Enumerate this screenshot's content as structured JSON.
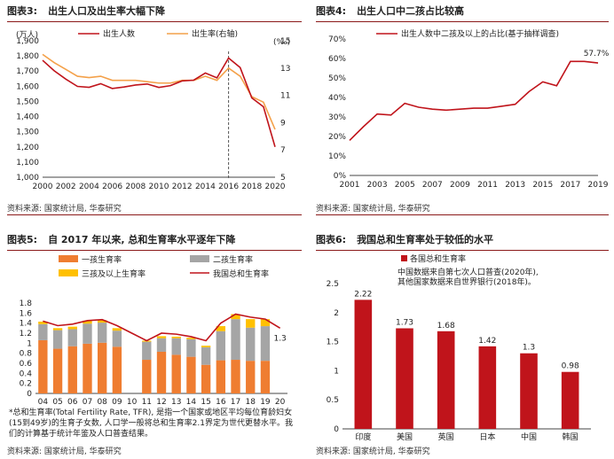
{
  "panels": {
    "p3": {
      "label": "图表3:",
      "title": "出生人口及出生率大幅下降",
      "source": "资料来源: 国家统计局, 华泰研究"
    },
    "p4": {
      "label": "图表4:",
      "title": "出生人口中二孩占比较高",
      "source": "资料来源: 国家统计局, 华泰研究"
    },
    "p5": {
      "label": "图表5:",
      "title": "自 2017 年以来, 总和生育率水平逐年下降",
      "source": "资料来源: 国家统计局, 华泰研究",
      "note": "*总和生育率(Total Fertility Rate, TFR), 是指一个国家或地区平均每位育龄妇女(15到49岁)的生育子女数, 人口学一般将总和生育率2.1界定为世代更替水平。我们的计算基于统计年鉴及人口普查结果。"
    },
    "p6": {
      "label": "图表6:",
      "title": "我国总和生育率处于较低的水平",
      "source": "资料来源: 国家统计局, 华泰研究"
    }
  },
  "colors": {
    "accent": "#c0141b",
    "orange": "#f4a14a",
    "bar_orange": "#ef7d31",
    "gray": "#a5a5a5",
    "yellow": "#ffc000",
    "line_red": "#c0141b"
  },
  "chart_data": [
    {
      "type": "line",
      "unit_left": "(万人)",
      "unit_right": "(‰)",
      "x": [
        2000,
        2001,
        2002,
        2003,
        2004,
        2005,
        2006,
        2007,
        2008,
        2009,
        2010,
        2011,
        2012,
        2013,
        2014,
        2015,
        2016,
        2017,
        2018,
        2019,
        2020
      ],
      "xticks": [
        "2000",
        "2002",
        "2004",
        "2006",
        "2008",
        "2010",
        "2012",
        "2014",
        "2016",
        "2018",
        "2020"
      ],
      "ylim": [
        1000,
        1900
      ],
      "yticks": [
        "1,000",
        "1,100",
        "1,200",
        "1,300",
        "1,400",
        "1,500",
        "1,600",
        "1,700",
        "1,800",
        "1,900"
      ],
      "y2lim": [
        5,
        15
      ],
      "y2ticks": [
        "5",
        "7",
        "9",
        "11",
        "13",
        "15"
      ],
      "series": [
        {
          "name": "出生人数",
          "axis": "left",
          "values": [
            1771,
            1702,
            1647,
            1599,
            1593,
            1617,
            1585,
            1595,
            1608,
            1615,
            1592,
            1604,
            1635,
            1640,
            1687,
            1655,
            1786,
            1723,
            1523,
            1465,
            1200
          ]
        },
        {
          "name": "出生率(右轴)",
          "axis": "right",
          "values": [
            14.0,
            13.4,
            12.9,
            12.4,
            12.3,
            12.4,
            12.1,
            12.1,
            12.1,
            12.0,
            11.9,
            11.9,
            12.1,
            12.1,
            12.4,
            12.1,
            13.0,
            12.4,
            10.9,
            10.5,
            8.5
          ]
        }
      ],
      "vline_x": 2016
    },
    {
      "type": "line",
      "x": [
        2001,
        2002,
        2003,
        2004,
        2005,
        2006,
        2007,
        2008,
        2009,
        2010,
        2011,
        2012,
        2013,
        2014,
        2015,
        2016,
        2017,
        2018,
        2019
      ],
      "xticks": [
        "2001",
        "2003",
        "2005",
        "2007",
        "2009",
        "2011",
        "2013",
        "2015",
        "2017",
        "2019"
      ],
      "ylim": [
        0,
        70
      ],
      "yticks": [
        "0%",
        "10%",
        "20%",
        "30%",
        "40%",
        "50%",
        "60%",
        "70%"
      ],
      "series": [
        {
          "name": "出生人数中二孩及以上的占比(基于抽样调查)",
          "values": [
            18,
            25,
            31.5,
            31,
            37,
            35,
            34,
            33.5,
            34,
            34.5,
            34.5,
            35.5,
            36.5,
            43,
            48,
            46,
            58.5,
            58.5,
            57.7
          ]
        }
      ],
      "annotation": "57.7%"
    },
    {
      "type": "bar",
      "categories": [
        "04",
        "05",
        "06",
        "07",
        "08",
        "09",
        "10",
        "11",
        "12",
        "13",
        "14",
        "15",
        "16",
        "17",
        "18",
        "19",
        "20"
      ],
      "series": [
        {
          "name": "一孩生育率",
          "values": [
            1.06,
            0.89,
            0.94,
            0.99,
            1.01,
            0.93,
            null,
            0.67,
            0.83,
            0.77,
            0.73,
            0.57,
            0.66,
            0.67,
            0.65,
            0.65,
            null
          ]
        },
        {
          "name": "二孩生育率",
          "values": [
            0.32,
            0.37,
            0.34,
            0.4,
            0.4,
            0.32,
            null,
            0.36,
            0.27,
            0.33,
            0.35,
            0.35,
            0.58,
            0.81,
            0.66,
            0.69,
            null
          ]
        },
        {
          "name": "三孩及以上生育率",
          "values": [
            0.05,
            0.04,
            0.05,
            0.06,
            0.05,
            0.05,
            null,
            0.02,
            0.04,
            0.03,
            0.03,
            0.03,
            0.1,
            0.1,
            0.17,
            0.14,
            null
          ]
        },
        {
          "name": "我国总和生育率",
          "type": "line",
          "values": [
            1.44,
            1.35,
            1.38,
            1.45,
            1.47,
            1.35,
            1.2,
            1.05,
            1.2,
            1.18,
            1.13,
            1.05,
            1.4,
            1.58,
            1.52,
            1.48,
            1.3
          ]
        }
      ],
      "ylim": [
        0,
        1.8
      ],
      "yticks": [
        "0",
        "0.2",
        "0.4",
        "0.6",
        "0.8",
        "1",
        "1.2",
        "1.4",
        "1.6",
        "1.8"
      ],
      "last_label": "1.3"
    },
    {
      "type": "bar",
      "categories": [
        "印度",
        "美国",
        "英国",
        "日本",
        "中国",
        "韩国"
      ],
      "values": [
        2.22,
        1.73,
        1.68,
        1.42,
        1.3,
        0.98
      ],
      "value_labels": [
        "2.22",
        "1.73",
        "1.68",
        "1.42",
        "1.3",
        "0.98"
      ],
      "series": [
        {
          "name": "各国总和生育率"
        }
      ],
      "ylim": [
        0,
        2.5
      ],
      "yticks": [
        "0",
        "0.5",
        "1",
        "1.5",
        "2",
        "2.5"
      ],
      "annotation": [
        "中国数据来自第七次人口普查(2020年),",
        "其他国家数据来自世界银行(2018年)。"
      ]
    }
  ]
}
